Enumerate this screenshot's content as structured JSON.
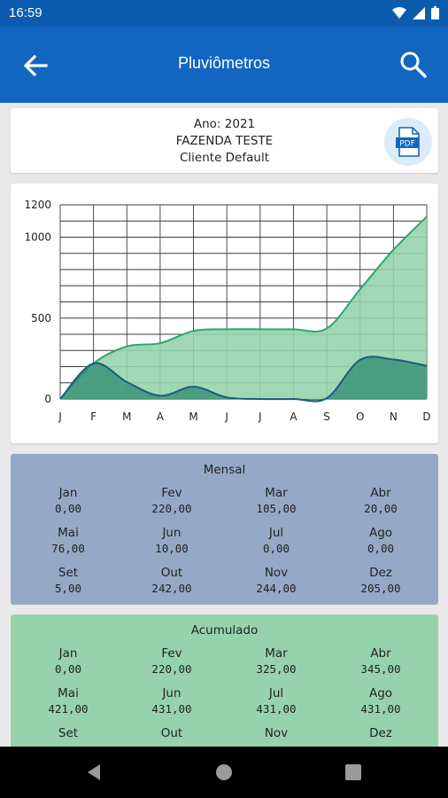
{
  "status": {
    "time": "16:59"
  },
  "appbar": {
    "title": "Pluviômetros"
  },
  "info": {
    "year": "Ano: 2021",
    "farm": "FAZENDA TESTE",
    "client": "Cliente Default",
    "pdf_label": "PDF"
  },
  "colors": {
    "appbar": "#1266c2",
    "cumulative_fill": "#96d3ad",
    "monthly_fill": "#2e8c72",
    "mensal_bg": "#95a9c6",
    "acumulado_bg": "#96d3ad"
  },
  "chart_data": {
    "type": "area",
    "categories": [
      "J",
      "F",
      "M",
      "A",
      "M",
      "J",
      "J",
      "A",
      "S",
      "O",
      "N",
      "D"
    ],
    "y_ticks": [
      "1200",
      "1000",
      "500",
      "0"
    ],
    "ylim": [
      0,
      1200
    ],
    "grid": true,
    "series": [
      {
        "values": [
          0,
          220,
          325,
          345,
          421,
          431,
          431,
          431,
          436,
          678,
          922,
          1127
        ]
      },
      {
        "values": [
          0,
          220,
          105,
          20,
          76,
          10,
          0,
          0,
          5,
          242,
          244,
          205
        ]
      }
    ]
  },
  "mensal": {
    "title": "Mensal",
    "months": [
      {
        "m": "Jan",
        "v": "0,00"
      },
      {
        "m": "Fev",
        "v": "220,00"
      },
      {
        "m": "Mar",
        "v": "105,00"
      },
      {
        "m": "Abr",
        "v": "20,00"
      },
      {
        "m": "Mai",
        "v": "76,00"
      },
      {
        "m": "Jun",
        "v": "10,00"
      },
      {
        "m": "Jul",
        "v": "0,00"
      },
      {
        "m": "Ago",
        "v": "0,00"
      },
      {
        "m": "Set",
        "v": "5,00"
      },
      {
        "m": "Out",
        "v": "242,00"
      },
      {
        "m": "Nov",
        "v": "244,00"
      },
      {
        "m": "Dez",
        "v": "205,00"
      }
    ]
  },
  "acumulado": {
    "title": "Acumulado",
    "months": [
      {
        "m": "Jan",
        "v": "0,00"
      },
      {
        "m": "Fev",
        "v": "220,00"
      },
      {
        "m": "Mar",
        "v": "325,00"
      },
      {
        "m": "Abr",
        "v": "345,00"
      },
      {
        "m": "Mai",
        "v": "421,00"
      },
      {
        "m": "Jun",
        "v": "431,00"
      },
      {
        "m": "Jul",
        "v": "431,00"
      },
      {
        "m": "Ago",
        "v": "431,00"
      },
      {
        "m": "Set",
        "v": ""
      },
      {
        "m": "Out",
        "v": ""
      },
      {
        "m": "Nov",
        "v": ""
      },
      {
        "m": "Dez",
        "v": ""
      }
    ]
  }
}
